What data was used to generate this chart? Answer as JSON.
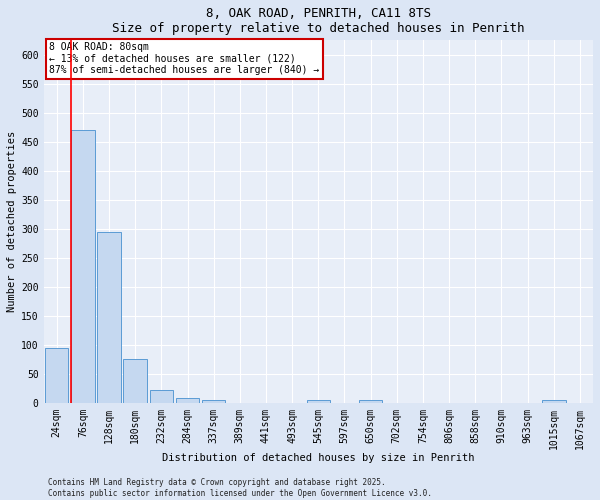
{
  "title1": "8, OAK ROAD, PENRITH, CA11 8TS",
  "title2": "Size of property relative to detached houses in Penrith",
  "xlabel": "Distribution of detached houses by size in Penrith",
  "ylabel": "Number of detached properties",
  "categories": [
    "24sqm",
    "76sqm",
    "128sqm",
    "180sqm",
    "232sqm",
    "284sqm",
    "337sqm",
    "389sqm",
    "441sqm",
    "493sqm",
    "545sqm",
    "597sqm",
    "650sqm",
    "702sqm",
    "754sqm",
    "806sqm",
    "858sqm",
    "910sqm",
    "963sqm",
    "1015sqm",
    "1067sqm"
  ],
  "values": [
    95,
    470,
    295,
    75,
    22,
    8,
    5,
    0,
    0,
    0,
    5,
    0,
    5,
    0,
    0,
    0,
    0,
    0,
    0,
    5,
    0
  ],
  "bar_color": "#c5d8f0",
  "bar_edge_color": "#5b9bd5",
  "red_line_index": 1,
  "ylim": [
    0,
    625
  ],
  "yticks": [
    0,
    50,
    100,
    150,
    200,
    250,
    300,
    350,
    400,
    450,
    500,
    550,
    600
  ],
  "annotation_text": "8 OAK ROAD: 80sqm\n← 13% of detached houses are smaller (122)\n87% of semi-detached houses are larger (840) →",
  "annotation_box_color": "#ffffff",
  "annotation_box_edge": "#cc0000",
  "footer1": "Contains HM Land Registry data © Crown copyright and database right 2025.",
  "footer2": "Contains public sector information licensed under the Open Government Licence v3.0.",
  "bg_color": "#dce6f5",
  "plot_bg_color": "#e8eef8",
  "grid_color": "#ffffff",
  "title_fontsize": 9,
  "label_fontsize": 7.5,
  "tick_fontsize": 7,
  "annotation_fontsize": 7,
  "footer_fontsize": 5.5
}
